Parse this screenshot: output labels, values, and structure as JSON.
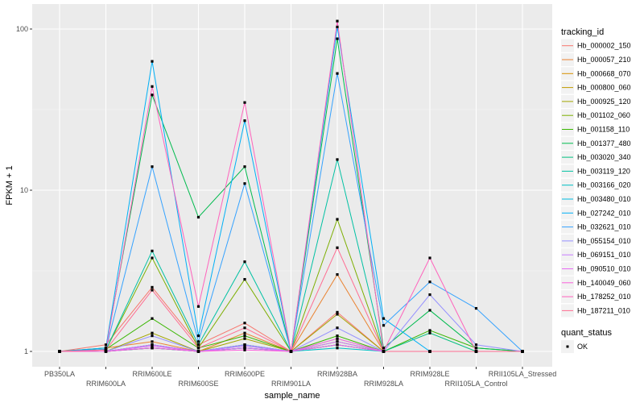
{
  "chart_data": {
    "type": "line",
    "xlabel": "sample_name",
    "ylabel": "FPKM + 1",
    "y_scale": "log10",
    "ylim": [
      0.95,
      125
    ],
    "y_ticks": [
      {
        "value": 1,
        "label": "1"
      },
      {
        "value": 10,
        "label": "10"
      },
      {
        "value": 100,
        "label": "100"
      }
    ],
    "grid": true,
    "legend_placement": "right",
    "categories": [
      "PB350LA",
      "RRIM600LA",
      "RRIM600LE",
      "RRIM600SE",
      "RRIM600PE",
      "RRIM901LA",
      "RRIM928BA",
      "RRIM928LA",
      "RRIM928LE",
      "RRII105LA_Control",
      "RRII105LA_Stressed"
    ],
    "legend_title": "tracking_id",
    "series": [
      {
        "name": "Hb_000002_150",
        "color": "#F8766D",
        "values": [
          1,
          1.1,
          2.5,
          1.1,
          1.5,
          1,
          1.75,
          1,
          1,
          1,
          1
        ]
      },
      {
        "name": "Hb_000057_210",
        "color": "#EA8331",
        "values": [
          1,
          1.05,
          1.15,
          1,
          1.3,
          1,
          3.0,
          1,
          1,
          1,
          1
        ]
      },
      {
        "name": "Hb_000668_070",
        "color": "#D89000",
        "values": [
          1,
          1,
          1.1,
          1,
          1.1,
          1,
          1.2,
          1,
          1,
          1,
          1
        ]
      },
      {
        "name": "Hb_000800_060",
        "color": "#C09B00",
        "values": [
          1,
          1,
          1.05,
          1,
          1.05,
          1,
          1.15,
          1,
          1,
          1,
          1
        ]
      },
      {
        "name": "Hb_000925_120",
        "color": "#A3A500",
        "values": [
          1,
          1,
          1.3,
          1,
          1.2,
          1,
          1.7,
          1,
          1,
          1,
          1
        ]
      },
      {
        "name": "Hb_001102_060",
        "color": "#7CAE00",
        "values": [
          1,
          1.02,
          3.8,
          1.05,
          2.8,
          1,
          6.6,
          1,
          1,
          1,
          1
        ]
      },
      {
        "name": "Hb_001158_110",
        "color": "#39B600",
        "values": [
          1,
          1.03,
          1.6,
          1.05,
          1.25,
          1,
          1.25,
          1,
          1.35,
          1.05,
          1
        ]
      },
      {
        "name": "Hb_001377_480",
        "color": "#00BB4E",
        "values": [
          1,
          1.05,
          39,
          6.8,
          14,
          1,
          87,
          1.05,
          1.8,
          1.05,
          1
        ]
      },
      {
        "name": "Hb_003020_340",
        "color": "#00BF7D",
        "values": [
          1,
          1,
          1.05,
          1,
          1.05,
          1,
          1.1,
          1,
          1.3,
          1,
          1
        ]
      },
      {
        "name": "Hb_003119_120",
        "color": "#00C1A3",
        "values": [
          1,
          1.02,
          4.2,
          1.1,
          3.6,
          1,
          15.5,
          1,
          1,
          1,
          1
        ]
      },
      {
        "name": "Hb_003166_020",
        "color": "#00BFC4",
        "values": [
          1,
          1,
          1.1,
          1,
          1.1,
          1,
          1.05,
          1,
          1,
          1,
          1
        ]
      },
      {
        "name": "Hb_003480_010",
        "color": "#00BAE0",
        "values": [
          1,
          1,
          1.05,
          1,
          1.05,
          1,
          1.1,
          1,
          1,
          1,
          1
        ]
      },
      {
        "name": "Hb_027242_010",
        "color": "#00B0F6",
        "values": [
          1,
          1.05,
          63,
          1.25,
          27,
          1,
          103,
          1.6,
          1,
          1,
          1
        ]
      },
      {
        "name": "Hb_032621_010",
        "color": "#35A2FF",
        "values": [
          1,
          1.03,
          14,
          1.15,
          11,
          1,
          53,
          1.45,
          2.7,
          1.85,
          1
        ]
      },
      {
        "name": "Hb_055154_010",
        "color": "#9590FF",
        "values": [
          1,
          1,
          1.25,
          1,
          1.1,
          1,
          1.4,
          1,
          2.25,
          1.1,
          1
        ]
      },
      {
        "name": "Hb_069151_010",
        "color": "#C77CFF",
        "values": [
          1,
          1,
          1.1,
          1,
          1.08,
          1,
          1.15,
          1,
          1,
          1,
          1
        ]
      },
      {
        "name": "Hb_090510_010",
        "color": "#E76BF3",
        "values": [
          1,
          1,
          1.08,
          1,
          1.05,
          1,
          1.2,
          1,
          1,
          1,
          1
        ]
      },
      {
        "name": "Hb_140049_060",
        "color": "#FA62DB",
        "values": [
          1,
          1,
          1.05,
          1,
          1.02,
          1,
          1.1,
          1,
          1,
          1,
          1
        ]
      },
      {
        "name": "Hb_178252_010",
        "color": "#FF62BC",
        "values": [
          1,
          1.02,
          44,
          1.9,
          35,
          1,
          112,
          1,
          3.8,
          1,
          1
        ]
      },
      {
        "name": "Hb_187211_010",
        "color": "#FF6C91",
        "values": [
          1,
          1.02,
          2.4,
          1.05,
          1.4,
          1,
          4.4,
          1,
          1,
          1,
          1
        ]
      }
    ],
    "point_legend": {
      "title": "quant_status",
      "entries": [
        "OK"
      ]
    }
  }
}
